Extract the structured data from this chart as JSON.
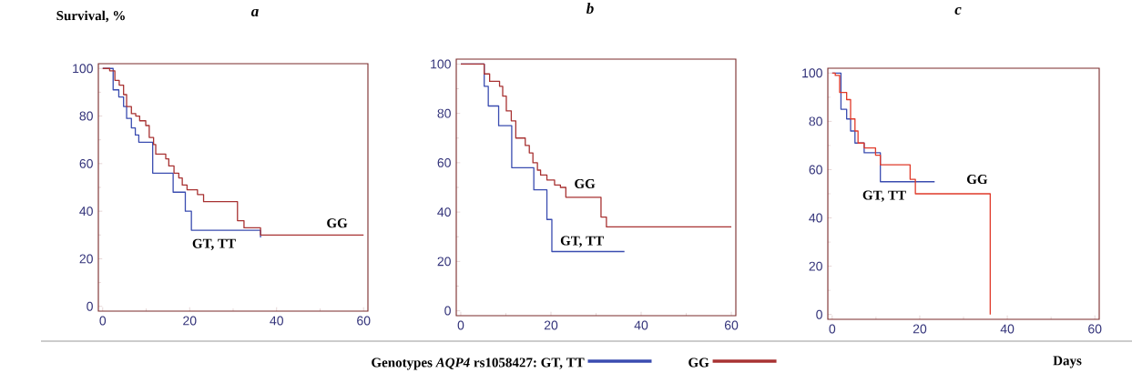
{
  "chart_data": [
    {
      "type": "step",
      "title": "a",
      "ylabel": "Survival, %",
      "xlim": [
        -1,
        61
      ],
      "ylim": [
        -2,
        102
      ],
      "xticks": [
        0,
        20,
        40,
        60
      ],
      "yticks": [
        0,
        20,
        40,
        60,
        80,
        100
      ],
      "series": [
        {
          "name": "GT, TT",
          "color": "#3a4cb0",
          "x": [
            0,
            2.4,
            3.7,
            4.8,
            5.5,
            6.6,
            7.5,
            8.3,
            11.5,
            16.2,
            19,
            20.4,
            36.3
          ],
          "values": [
            100,
            91,
            88,
            84,
            79,
            75,
            72,
            69,
            56,
            48,
            40,
            32,
            29
          ]
        },
        {
          "name": "GG",
          "color": "#a83232",
          "x": [
            0,
            1.6,
            2.8,
            3.8,
            4.8,
            5.5,
            6.6,
            7.6,
            8.5,
            9.9,
            10.7,
            11.7,
            12.2,
            14.5,
            15.2,
            16.4,
            17.5,
            18.3,
            19.4,
            21.8,
            23.2,
            31,
            32.5,
            36.3,
            60
          ],
          "values": [
            100,
            99,
            95,
            93,
            89,
            84,
            81,
            80,
            78,
            76,
            71,
            68,
            64,
            62,
            59,
            56,
            54,
            51,
            49,
            47,
            44,
            36,
            33,
            30,
            30
          ]
        }
      ]
    },
    {
      "type": "step",
      "title": "b",
      "xlim": [
        -1,
        61
      ],
      "ylim": [
        -2,
        102
      ],
      "xticks": [
        0,
        20,
        40,
        60
      ],
      "yticks": [
        0,
        20,
        40,
        60,
        80,
        100
      ],
      "legend": "bottom",
      "legend_title": "Genotypes *AQP4* rs1058427:",
      "series": [
        {
          "name": "GT, TT",
          "color": "#3a4cb0",
          "x": [
            0,
            5.2,
            6.1,
            8.4,
            11.3,
            16.2,
            19.1,
            20.2,
            36.3
          ],
          "values": [
            100,
            91,
            83,
            75,
            58,
            49,
            37,
            24,
            24
          ]
        },
        {
          "name": "GG",
          "color": "#a83232",
          "x": [
            0,
            5.2,
            6.4,
            8.6,
            9.3,
            10.1,
            11.2,
            12.2,
            14.3,
            15.2,
            16,
            17,
            17.7,
            19.1,
            20.8,
            22.1,
            23.3,
            31.1,
            32.3,
            60
          ],
          "values": [
            100,
            96,
            93,
            91,
            87,
            81,
            77,
            70,
            67,
            64,
            60,
            57,
            55,
            53,
            51,
            50,
            46,
            38,
            34,
            34
          ]
        }
      ]
    },
    {
      "type": "step",
      "title": "c",
      "xlabel": "Days",
      "xlim": [
        -1,
        61
      ],
      "ylim": [
        -2,
        102
      ],
      "xticks": [
        0,
        20,
        40,
        60
      ],
      "yticks": [
        0,
        20,
        40,
        60,
        80,
        100
      ],
      "series": [
        {
          "name": "GT, TT",
          "color": "#3a4cb0",
          "x": [
            0,
            2,
            3.3,
            4.2,
            5.2,
            7.3,
            11,
            23.4
          ],
          "values": [
            100,
            85,
            81,
            76,
            71,
            67,
            55,
            55
          ]
        },
        {
          "name": "GG",
          "color": "#e03a2a",
          "x": [
            0,
            0.7,
            1.7,
            3.3,
            4.2,
            5.2,
            5.9,
            7.3,
            9.9,
            11,
            17.8,
            19,
            36.1
          ],
          "values": [
            100,
            99,
            92,
            89,
            81,
            76,
            71,
            69,
            66,
            62,
            56,
            50,
            0
          ]
        }
      ]
    }
  ]
}
